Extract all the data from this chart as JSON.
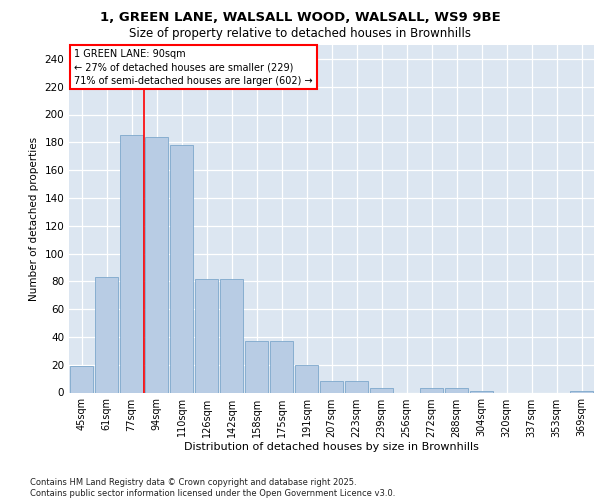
{
  "title_line1": "1, GREEN LANE, WALSALL WOOD, WALSALL, WS9 9BE",
  "title_line2": "Size of property relative to detached houses in Brownhills",
  "xlabel": "Distribution of detached houses by size in Brownhills",
  "ylabel": "Number of detached properties",
  "categories": [
    "45sqm",
    "61sqm",
    "77sqm",
    "94sqm",
    "110sqm",
    "126sqm",
    "142sqm",
    "158sqm",
    "175sqm",
    "191sqm",
    "207sqm",
    "223sqm",
    "239sqm",
    "256sqm",
    "272sqm",
    "288sqm",
    "304sqm",
    "320sqm",
    "337sqm",
    "353sqm",
    "369sqm"
  ],
  "values": [
    19,
    83,
    185,
    184,
    178,
    82,
    82,
    37,
    37,
    20,
    8,
    8,
    3,
    0,
    3,
    3,
    1,
    0,
    0,
    0,
    1
  ],
  "bar_color": "#b8cce4",
  "bar_edgecolor": "#7da7cc",
  "vline_x": 2.5,
  "vline_color": "red",
  "vline_linewidth": 1.2,
  "annotation_text": "1 GREEN LANE: 90sqm\n← 27% of detached houses are smaller (229)\n71% of semi-detached houses are larger (602) →",
  "ylim": [
    0,
    250
  ],
  "yticks": [
    0,
    20,
    40,
    60,
    80,
    100,
    120,
    140,
    160,
    180,
    200,
    220,
    240
  ],
  "bg_color": "#dce6f1",
  "grid_color": "white",
  "footer_line1": "Contains HM Land Registry data © Crown copyright and database right 2025.",
  "footer_line2": "Contains public sector information licensed under the Open Government Licence v3.0."
}
